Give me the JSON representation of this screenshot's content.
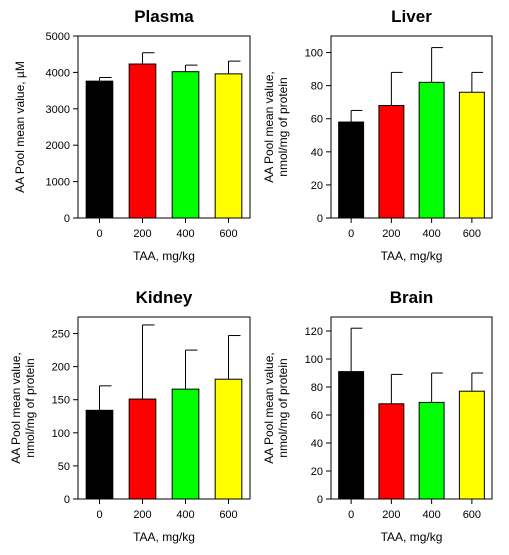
{
  "chart_data": [
    {
      "type": "bar",
      "title": "Plasma",
      "xlabel": "TAA, mg/kg",
      "ylabel": [
        "AA Pool mean value, µM"
      ],
      "categories": [
        "0",
        "200",
        "400",
        "600"
      ],
      "values": [
        3760,
        4230,
        4020,
        3960
      ],
      "errors": [
        100,
        310,
        180,
        350
      ],
      "yticks": [
        0,
        1000,
        2000,
        3000,
        4000,
        5000
      ],
      "ylim": [
        0,
        5000
      ],
      "bar_colors": [
        "#000000",
        "#ff0000",
        "#00ff00",
        "#ffff00"
      ],
      "grid": false
    },
    {
      "type": "bar",
      "title": "Liver",
      "xlabel": "TAA, mg/kg",
      "ylabel": [
        "AA Pool mean value,",
        "nmol/mg of protein"
      ],
      "categories": [
        "0",
        "200",
        "400",
        "600"
      ],
      "values": [
        58,
        68,
        82,
        76
      ],
      "errors": [
        7,
        20,
        21,
        12
      ],
      "yticks": [
        0,
        20,
        40,
        60,
        80,
        100
      ],
      "ylim": [
        0,
        110
      ],
      "bar_colors": [
        "#000000",
        "#ff0000",
        "#00ff00",
        "#ffff00"
      ],
      "grid": false
    },
    {
      "type": "bar",
      "title": "Kidney",
      "xlabel": "TAA, mg/kg",
      "ylabel": [
        "AA Pool mean value,",
        "nmol/mg of protein"
      ],
      "categories": [
        "0",
        "200",
        "400",
        "600"
      ],
      "values": [
        134,
        151,
        166,
        181
      ],
      "errors": [
        37,
        112,
        59,
        66
      ],
      "yticks": [
        0,
        50,
        100,
        150,
        200,
        250
      ],
      "ylim": [
        0,
        275
      ],
      "bar_colors": [
        "#000000",
        "#ff0000",
        "#00ff00",
        "#ffff00"
      ],
      "grid": false
    },
    {
      "type": "bar",
      "title": "Brain",
      "xlabel": "TAA, mg/kg",
      "ylabel": [
        "AA Pool mean value,",
        "nmol/mg of protein"
      ],
      "categories": [
        "0",
        "200",
        "400",
        "600"
      ],
      "values": [
        91,
        68,
        69,
        77
      ],
      "errors": [
        31,
        21,
        21,
        13
      ],
      "yticks": [
        0,
        20,
        40,
        60,
        80,
        100,
        120
      ],
      "ylim": [
        0,
        130
      ],
      "bar_colors": [
        "#000000",
        "#ff0000",
        "#00ff00",
        "#ffff00"
      ],
      "grid": false
    }
  ]
}
